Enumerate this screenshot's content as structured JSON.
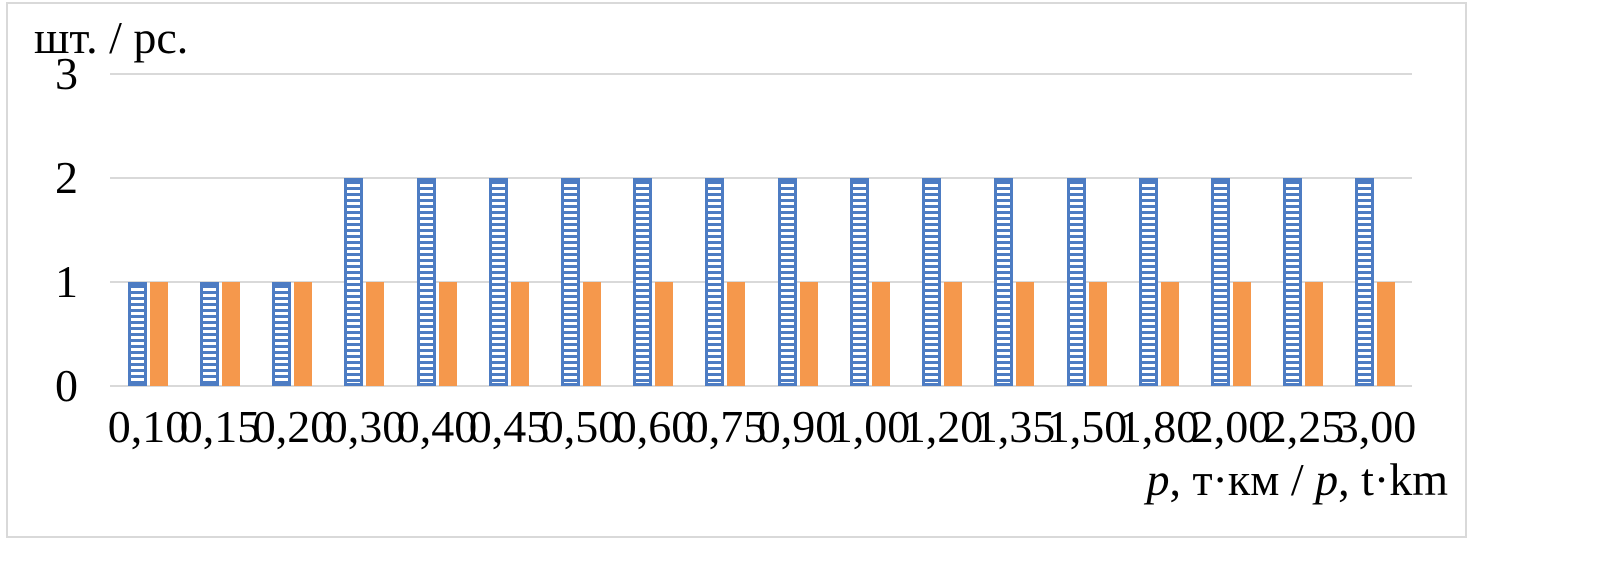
{
  "figure": {
    "y_axis_title": "шт. / pc.",
    "x_axis_title": "p, т·км / p, t·km",
    "x_axis_title_parts": [
      {
        "text": "p",
        "italic": true
      },
      {
        "text": ", т·км / ",
        "italic": false
      },
      {
        "text": "p",
        "italic": true
      },
      {
        "text": ", t·km",
        "italic": false
      }
    ]
  },
  "chart_data": {
    "type": "bar",
    "title": "",
    "categories": [
      "0,10",
      "0,15",
      "0,20",
      "0,30",
      "0,40",
      "0,45",
      "0,50",
      "0,60",
      "0,75",
      "0,90",
      "1,00",
      "1,20",
      "1,35",
      "1,50",
      "1,80",
      "2,00",
      "2,25",
      "3,00"
    ],
    "series": [
      {
        "name": "hatched-blue-series",
        "style": "horizontal-stripes",
        "color": "#4D7CC3",
        "values": [
          1,
          1,
          1,
          2,
          2,
          2,
          2,
          2,
          2,
          2,
          2,
          2,
          2,
          2,
          2,
          2,
          2,
          2
        ]
      },
      {
        "name": "solid-orange-series",
        "style": "solid",
        "color": "#F5984C",
        "values": [
          1,
          1,
          1,
          1,
          1,
          1,
          1,
          1,
          1,
          1,
          1,
          1,
          1,
          1,
          1,
          1,
          1,
          1
        ]
      }
    ],
    "xlabel": "p, т·км / p, t·km",
    "ylabel": "шт. / pc.",
    "y_ticks": [
      0,
      1,
      2,
      3
    ],
    "ylim": [
      0,
      3
    ],
    "grid": "horizontal",
    "gridline_color": "#D9D9D9",
    "legend": "none",
    "frame_border_color": "#D9D9D9",
    "background_color": "#FFFFFF"
  }
}
